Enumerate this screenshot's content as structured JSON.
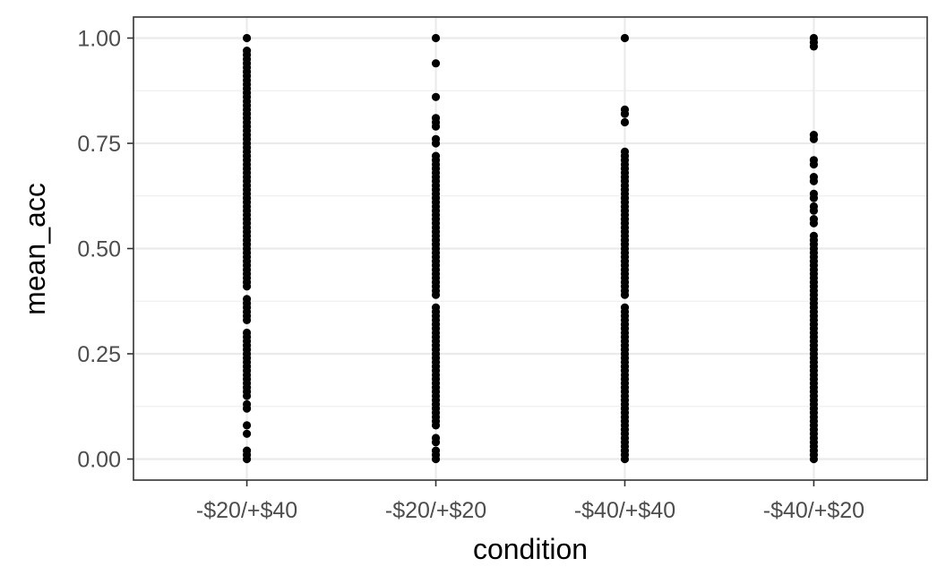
{
  "chart_data": {
    "type": "scatter",
    "title": "",
    "xlabel": "condition",
    "ylabel": "mean_acc",
    "categories": [
      "-$20/+$40",
      "-$20/+$20",
      "-$40/+$40",
      "-$40/+$20"
    ],
    "ylim": [
      -0.05,
      1.05
    ],
    "y_ticks": [
      "0.00",
      "0.25",
      "0.50",
      "0.75",
      "1.00"
    ],
    "grid": true,
    "legend": "none",
    "point_color": "#000000",
    "series": [
      {
        "category": "-$20/+$40",
        "values": [
          0.0,
          0.01,
          0.02,
          0.06,
          0.08,
          0.12,
          0.13,
          0.15,
          0.16,
          0.17,
          0.18,
          0.19,
          0.2,
          0.21,
          0.22,
          0.23,
          0.24,
          0.25,
          0.26,
          0.27,
          0.28,
          0.29,
          0.3,
          0.33,
          0.34,
          0.35,
          0.36,
          0.37,
          0.38,
          0.41,
          0.42,
          0.43,
          0.44,
          0.45,
          0.46,
          0.47,
          0.48,
          0.49,
          0.5,
          0.51,
          0.52,
          0.53,
          0.54,
          0.55,
          0.56,
          0.57,
          0.58,
          0.59,
          0.6,
          0.61,
          0.62,
          0.63,
          0.64,
          0.65,
          0.66,
          0.67,
          0.68,
          0.69,
          0.7,
          0.71,
          0.72,
          0.73,
          0.74,
          0.75,
          0.76,
          0.77,
          0.78,
          0.79,
          0.8,
          0.81,
          0.82,
          0.83,
          0.84,
          0.85,
          0.86,
          0.87,
          0.88,
          0.89,
          0.9,
          0.91,
          0.92,
          0.93,
          0.94,
          0.95,
          0.96,
          0.97,
          1.0
        ]
      },
      {
        "category": "-$20/+$20",
        "values": [
          0.0,
          0.01,
          0.02,
          0.04,
          0.05,
          0.08,
          0.09,
          0.1,
          0.11,
          0.12,
          0.13,
          0.14,
          0.15,
          0.16,
          0.17,
          0.18,
          0.19,
          0.2,
          0.21,
          0.22,
          0.23,
          0.24,
          0.25,
          0.26,
          0.27,
          0.28,
          0.29,
          0.3,
          0.31,
          0.32,
          0.33,
          0.34,
          0.35,
          0.36,
          0.39,
          0.4,
          0.41,
          0.42,
          0.43,
          0.44,
          0.45,
          0.46,
          0.47,
          0.48,
          0.49,
          0.5,
          0.51,
          0.52,
          0.53,
          0.54,
          0.55,
          0.56,
          0.57,
          0.58,
          0.59,
          0.6,
          0.61,
          0.62,
          0.63,
          0.64,
          0.65,
          0.66,
          0.67,
          0.68,
          0.69,
          0.7,
          0.71,
          0.72,
          0.75,
          0.76,
          0.79,
          0.8,
          0.81,
          0.86,
          0.94,
          1.0
        ]
      },
      {
        "category": "-$40/+$40",
        "values": [
          0.0,
          0.01,
          0.02,
          0.03,
          0.04,
          0.05,
          0.06,
          0.07,
          0.08,
          0.09,
          0.1,
          0.11,
          0.12,
          0.13,
          0.14,
          0.15,
          0.16,
          0.17,
          0.18,
          0.19,
          0.2,
          0.21,
          0.22,
          0.23,
          0.24,
          0.25,
          0.26,
          0.27,
          0.28,
          0.29,
          0.3,
          0.31,
          0.32,
          0.33,
          0.34,
          0.35,
          0.36,
          0.39,
          0.4,
          0.41,
          0.42,
          0.43,
          0.44,
          0.45,
          0.46,
          0.47,
          0.48,
          0.49,
          0.5,
          0.51,
          0.52,
          0.53,
          0.54,
          0.55,
          0.56,
          0.57,
          0.58,
          0.59,
          0.6,
          0.61,
          0.62,
          0.63,
          0.64,
          0.65,
          0.66,
          0.67,
          0.68,
          0.69,
          0.7,
          0.71,
          0.72,
          0.73,
          0.8,
          0.82,
          0.83,
          1.0
        ]
      },
      {
        "category": "-$40/+$20",
        "values": [
          0.0,
          0.01,
          0.02,
          0.03,
          0.04,
          0.05,
          0.06,
          0.07,
          0.08,
          0.09,
          0.1,
          0.11,
          0.12,
          0.13,
          0.14,
          0.15,
          0.16,
          0.17,
          0.18,
          0.19,
          0.2,
          0.21,
          0.22,
          0.23,
          0.24,
          0.25,
          0.26,
          0.27,
          0.28,
          0.29,
          0.3,
          0.31,
          0.32,
          0.33,
          0.34,
          0.35,
          0.36,
          0.37,
          0.38,
          0.39,
          0.4,
          0.41,
          0.42,
          0.43,
          0.44,
          0.45,
          0.46,
          0.47,
          0.48,
          0.49,
          0.5,
          0.51,
          0.52,
          0.53,
          0.56,
          0.57,
          0.59,
          0.6,
          0.62,
          0.63,
          0.66,
          0.67,
          0.7,
          0.71,
          0.76,
          0.77,
          0.98,
          0.99,
          1.0
        ]
      }
    ]
  }
}
